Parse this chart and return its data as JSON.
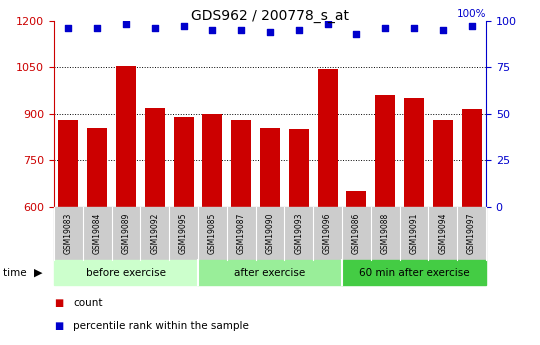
{
  "title": "GDS962 / 200778_s_at",
  "samples": [
    "GSM19083",
    "GSM19084",
    "GSM19089",
    "GSM19092",
    "GSM19095",
    "GSM19085",
    "GSM19087",
    "GSM19090",
    "GSM19093",
    "GSM19096",
    "GSM19086",
    "GSM19088",
    "GSM19091",
    "GSM19094",
    "GSM19097"
  ],
  "counts": [
    880,
    855,
    1055,
    920,
    890,
    900,
    880,
    855,
    850,
    1045,
    650,
    960,
    950,
    880,
    915
  ],
  "percentile_ranks": [
    96,
    96,
    98,
    96,
    97,
    95,
    95,
    94,
    95,
    98,
    93,
    96,
    96,
    95,
    97
  ],
  "groups": [
    {
      "label": "before exercise",
      "start": 0,
      "end": 5,
      "color": "#ccffcc"
    },
    {
      "label": "after exercise",
      "start": 5,
      "end": 10,
      "color": "#99ee99"
    },
    {
      "label": "60 min after exercise",
      "start": 10,
      "end": 15,
      "color": "#44cc44"
    }
  ],
  "bar_color": "#cc0000",
  "dot_color": "#0000cc",
  "ylim_left": [
    600,
    1200
  ],
  "ylim_right": [
    0,
    100
  ],
  "yticks_left": [
    600,
    750,
    900,
    1050,
    1200
  ],
  "yticks_right": [
    0,
    25,
    50,
    75,
    100
  ],
  "grid_lines": [
    750,
    900,
    1050
  ],
  "bar_width": 0.7,
  "tick_label_color": "#cccccc",
  "fig_width": 5.4,
  "fig_height": 3.45,
  "dpi": 100
}
